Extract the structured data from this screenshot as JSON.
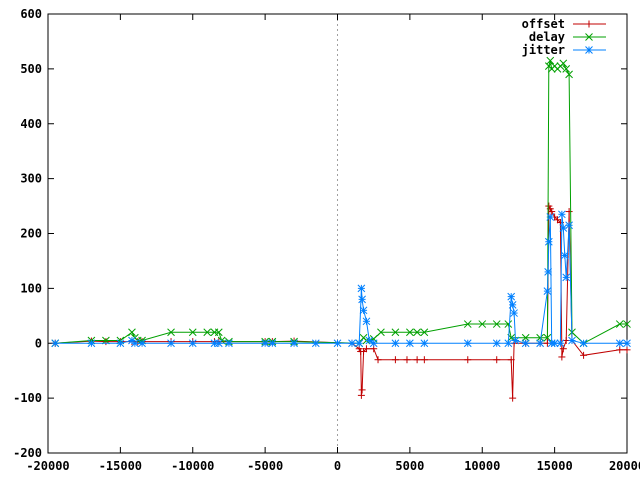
{
  "chart_data": {
    "type": "line",
    "title": "",
    "xlabel": "",
    "ylabel": "",
    "xlim": [
      -20000,
      20000
    ],
    "ylim": [
      -200,
      600
    ],
    "x_ticks": [
      -20000,
      -15000,
      -10000,
      -5000,
      0,
      5000,
      10000,
      15000,
      20000
    ],
    "y_ticks": [
      -200,
      -100,
      0,
      100,
      200,
      300,
      400,
      500,
      600
    ],
    "zero_line": {
      "x": 0,
      "style": "dotted",
      "color": "#a0a0a0"
    },
    "grid": false,
    "legend_position": "top-right",
    "series": [
      {
        "name": "offset",
        "color": "#c00000",
        "marker": "plus",
        "points": [
          [
            -19500,
            0
          ],
          [
            -17000,
            4
          ],
          [
            -16000,
            3
          ],
          [
            -15000,
            3
          ],
          [
            -14200,
            3
          ],
          [
            -13800,
            3
          ],
          [
            -13500,
            3
          ],
          [
            -11500,
            3
          ],
          [
            -10000,
            3
          ],
          [
            -8500,
            3
          ],
          [
            -8200,
            3
          ],
          [
            -5000,
            3
          ],
          [
            -4500,
            3
          ],
          [
            -3000,
            4
          ],
          [
            1000,
            0
          ],
          [
            1500,
            -10
          ],
          [
            1600,
            -15
          ],
          [
            1650,
            -95
          ],
          [
            1700,
            -85
          ],
          [
            1800,
            -15
          ],
          [
            2000,
            -10
          ],
          [
            2500,
            -10
          ],
          [
            2800,
            -30
          ],
          [
            4000,
            -30
          ],
          [
            4800,
            -30
          ],
          [
            5500,
            -30
          ],
          [
            6000,
            -30
          ],
          [
            9000,
            -30
          ],
          [
            11000,
            -30
          ],
          [
            12000,
            -30
          ],
          [
            12100,
            -100
          ],
          [
            12200,
            0
          ],
          [
            13000,
            0
          ],
          [
            14000,
            0
          ],
          [
            14500,
            0
          ],
          [
            14600,
            250
          ],
          [
            14700,
            245
          ],
          [
            14800,
            240
          ],
          [
            15000,
            230
          ],
          [
            15200,
            225
          ],
          [
            15400,
            220
          ],
          [
            15500,
            -25
          ],
          [
            15600,
            -10
          ],
          [
            15800,
            5
          ],
          [
            16000,
            240
          ],
          [
            16200,
            5
          ],
          [
            17000,
            -22
          ],
          [
            19500,
            -12
          ],
          [
            20000,
            -12
          ]
        ]
      },
      {
        "name": "delay",
        "color": "#00a000",
        "marker": "cross",
        "points": [
          [
            -19500,
            0
          ],
          [
            -17000,
            5
          ],
          [
            -16000,
            5
          ],
          [
            -15000,
            5
          ],
          [
            -14200,
            20
          ],
          [
            -14000,
            10
          ],
          [
            -13800,
            5
          ],
          [
            -13500,
            5
          ],
          [
            -11500,
            20
          ],
          [
            -10000,
            20
          ],
          [
            -9000,
            20
          ],
          [
            -8500,
            20
          ],
          [
            -8200,
            20
          ],
          [
            -8000,
            5
          ],
          [
            -7500,
            3
          ],
          [
            -5000,
            3
          ],
          [
            -4500,
            3
          ],
          [
            -3000,
            3
          ],
          [
            1500,
            0
          ],
          [
            1800,
            10
          ],
          [
            2000,
            5
          ],
          [
            2500,
            8
          ],
          [
            3000,
            20
          ],
          [
            4000,
            20
          ],
          [
            5000,
            20
          ],
          [
            5500,
            20
          ],
          [
            6000,
            20
          ],
          [
            9000,
            35
          ],
          [
            10000,
            35
          ],
          [
            11000,
            35
          ],
          [
            11800,
            35
          ],
          [
            12000,
            10
          ],
          [
            13000,
            10
          ],
          [
            14000,
            10
          ],
          [
            14500,
            10
          ],
          [
            14600,
            505
          ],
          [
            14700,
            515
          ],
          [
            14800,
            500
          ],
          [
            15000,
            505
          ],
          [
            15200,
            500
          ],
          [
            15400,
            505
          ],
          [
            15600,
            510
          ],
          [
            15800,
            500
          ],
          [
            16000,
            490
          ],
          [
            16200,
            20
          ],
          [
            17000,
            0
          ],
          [
            19500,
            35
          ],
          [
            20000,
            35
          ]
        ]
      },
      {
        "name": "jitter",
        "color": "#0080ff",
        "marker": "star",
        "points": [
          [
            -19500,
            0
          ],
          [
            -17000,
            0
          ],
          [
            -15000,
            0
          ],
          [
            -14200,
            5
          ],
          [
            -14000,
            0
          ],
          [
            -13500,
            0
          ],
          [
            -11500,
            0
          ],
          [
            -10000,
            0
          ],
          [
            -8500,
            0
          ],
          [
            -8200,
            0
          ],
          [
            -7500,
            0
          ],
          [
            -5000,
            0
          ],
          [
            -4500,
            0
          ],
          [
            -3000,
            0
          ],
          [
            -1500,
            0
          ],
          [
            0,
            0
          ],
          [
            1000,
            0
          ],
          [
            1500,
            0
          ],
          [
            1650,
            100
          ],
          [
            1700,
            80
          ],
          [
            1800,
            60
          ],
          [
            2000,
            40
          ],
          [
            2200,
            5
          ],
          [
            2500,
            0
          ],
          [
            4000,
            0
          ],
          [
            5000,
            0
          ],
          [
            6000,
            0
          ],
          [
            9000,
            0
          ],
          [
            11000,
            0
          ],
          [
            11800,
            0
          ],
          [
            12000,
            85
          ],
          [
            12100,
            70
          ],
          [
            12200,
            55
          ],
          [
            12300,
            5
          ],
          [
            13000,
            0
          ],
          [
            14000,
            0
          ],
          [
            14500,
            95
          ],
          [
            14550,
            130
          ],
          [
            14600,
            185
          ],
          [
            14700,
            230
          ],
          [
            14800,
            0
          ],
          [
            15000,
            0
          ],
          [
            15400,
            0
          ],
          [
            15500,
            235
          ],
          [
            15600,
            210
          ],
          [
            15700,
            160
          ],
          [
            15800,
            120
          ],
          [
            16000,
            215
          ],
          [
            16200,
            5
          ],
          [
            17000,
            0
          ],
          [
            19500,
            0
          ],
          [
            20000,
            0
          ]
        ]
      }
    ]
  }
}
